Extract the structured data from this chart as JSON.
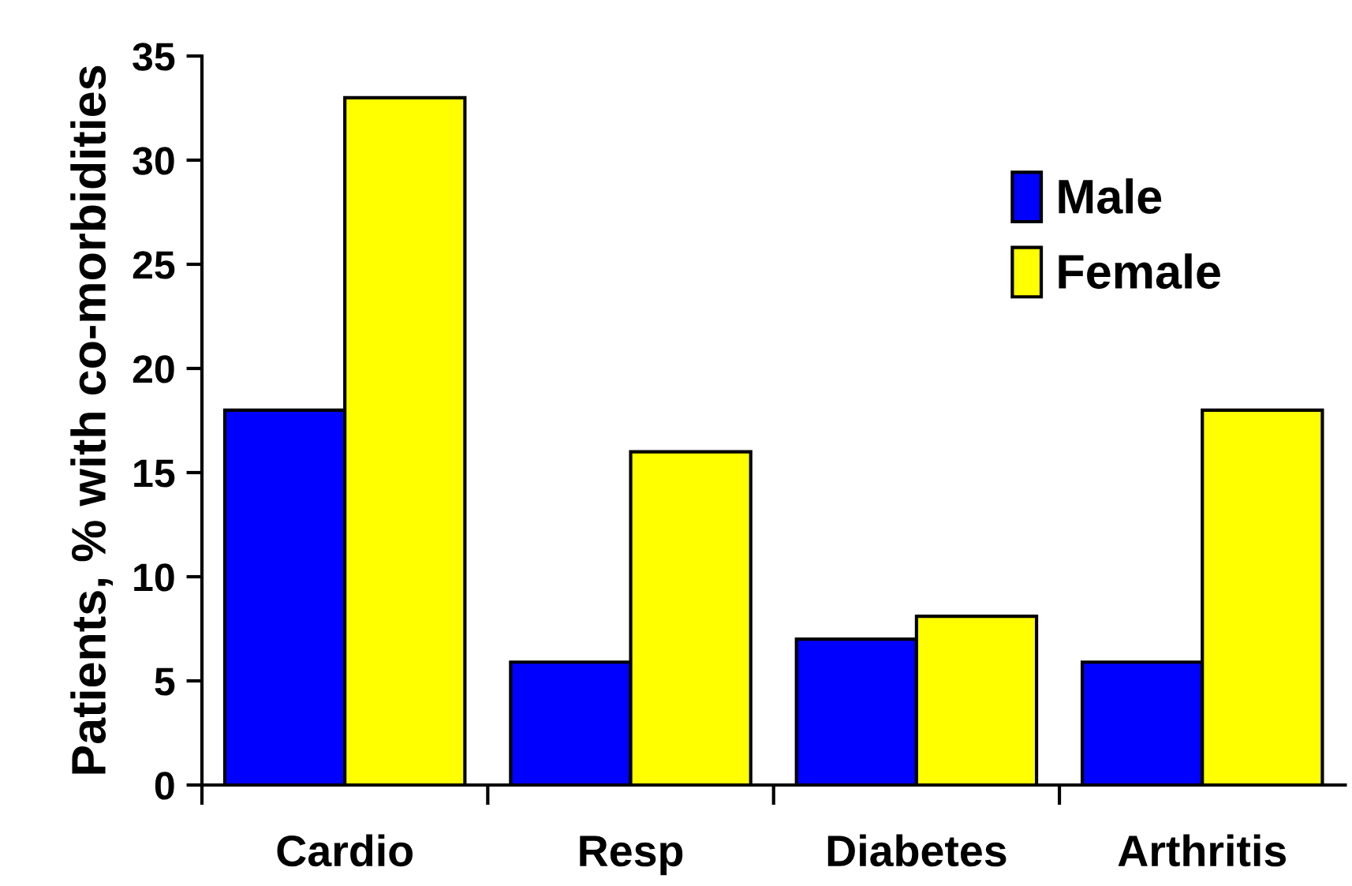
{
  "chart_data": {
    "type": "bar",
    "ylabel": "Patients, % with co-morbidities",
    "categories": [
      "Cardio",
      "Resp",
      "Diabetes",
      "Arthritis"
    ],
    "series": [
      {
        "name": "Male",
        "color": "#0000ff",
        "values": [
          18,
          5.9,
          7,
          5.9
        ]
      },
      {
        "name": "Female",
        "color": "#ffff00",
        "values": [
          33,
          16,
          8.1,
          18
        ]
      }
    ],
    "ylim": [
      0,
      35
    ],
    "yticks": [
      0,
      5,
      10,
      15,
      20,
      25,
      30,
      35
    ],
    "grid": false,
    "legend": "top right"
  }
}
